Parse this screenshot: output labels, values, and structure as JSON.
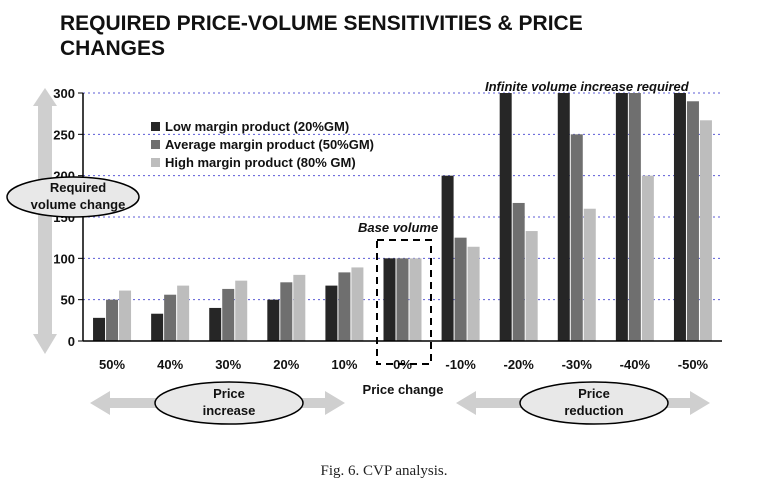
{
  "chart_data": {
    "type": "bar",
    "title_line1": "REQUIRED PRICE-VOLUME SENSITIVITIES & PRICE",
    "title_line2": "CHANGES",
    "ylim": [
      0,
      300
    ],
    "yticks": [
      "0",
      "50",
      "100",
      "150",
      "200",
      "250",
      "300"
    ],
    "grid": true,
    "legend_position": "top-left",
    "categories": [
      "50%",
      "40%",
      "30%",
      "20%",
      "10%",
      "0%",
      "-10%",
      "-20%",
      "-30%",
      "-40%",
      "-50%"
    ],
    "series": [
      {
        "name": "Low margin product (20%GM)",
        "color": "#262626",
        "values": [
          28,
          33,
          40,
          50,
          67,
          100,
          200,
          300,
          300,
          300,
          300
        ]
      },
      {
        "name": "Average margin product (50%GM)",
        "color": "#6f6f6f",
        "values": [
          50,
          56,
          63,
          71,
          83,
          100,
          125,
          167,
          250,
          300,
          290
        ]
      },
      {
        "name": "High margin product (80% GM)",
        "color": "#bdbdbd",
        "values": [
          61,
          67,
          73,
          80,
          89,
          100,
          114,
          133,
          160,
          200,
          267
        ]
      }
    ],
    "annotations": {
      "infinite": "Infinite volume increase required",
      "base": "Base volume",
      "required": "Required volume change",
      "xlabel": "Price change",
      "increase": "Price increase",
      "reduction": "Price reduction"
    }
  },
  "caption": "Fig. 6. CVP   analysis."
}
